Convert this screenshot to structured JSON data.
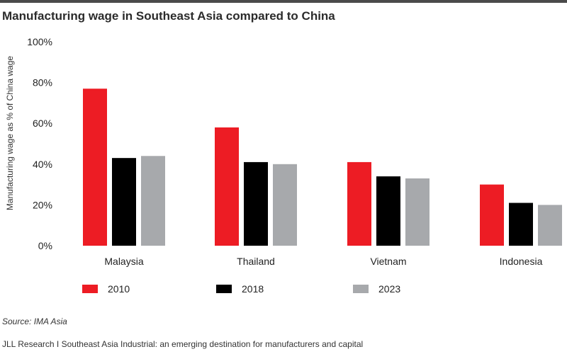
{
  "title": "Manufacturing wage in Southeast Asia compared to China",
  "source": "Source: IMA Asia",
  "footer": "JLL Research  I  Southeast Asia Industrial: an emerging destination for manufacturers and capital",
  "chart_data": {
    "type": "bar",
    "title": "Manufacturing wage in Southeast Asia compared to China",
    "ylabel": "Manufacturing wage as % of China wage",
    "xlabel": "",
    "categories": [
      "Malaysia",
      "Thailand",
      "Vietnam",
      "Indonesia"
    ],
    "series": [
      {
        "name": "2010",
        "color": "#ed1c24",
        "values": [
          77,
          58,
          41,
          30
        ]
      },
      {
        "name": "2018",
        "color": "#000000",
        "values": [
          43,
          41,
          34,
          21
        ]
      },
      {
        "name": "2023",
        "color": "#a7a9ac",
        "values": [
          44,
          40,
          33,
          20
        ]
      }
    ],
    "ylim": [
      0,
      100
    ],
    "yticks": [
      0,
      20,
      40,
      60,
      80,
      100
    ],
    "ytick_labels": [
      "0%",
      "20%",
      "40%",
      "60%",
      "80%",
      "100%"
    ],
    "grid": false,
    "legend_position": "bottom"
  }
}
